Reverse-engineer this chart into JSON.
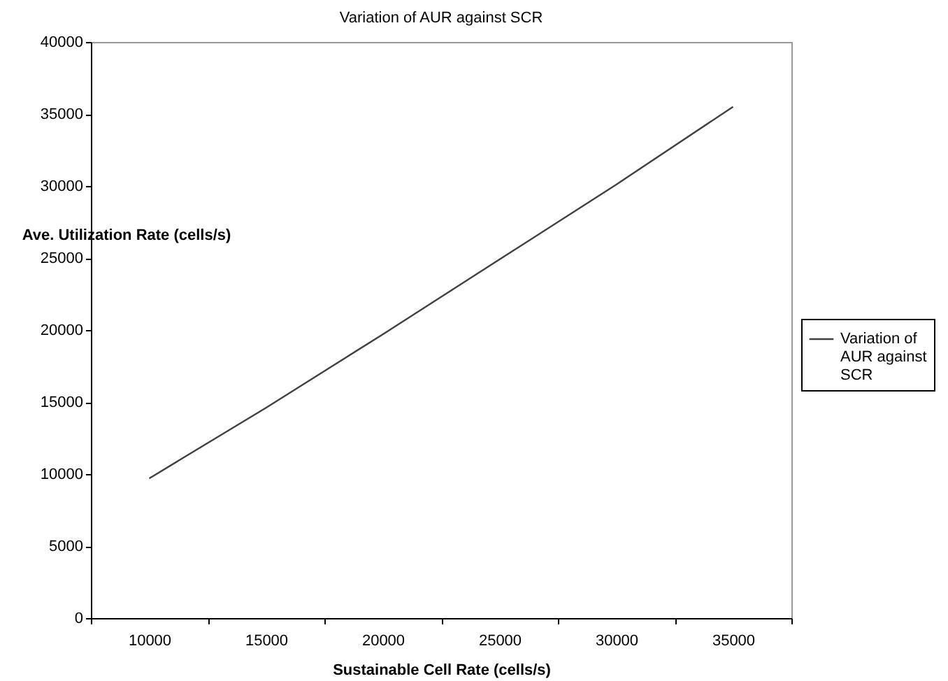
{
  "chart_data": {
    "type": "line",
    "title": "Variation of AUR against SCR",
    "xlabel": "Sustainable Cell Rate (cells/s)",
    "ylabel": "Ave. Utilization Rate (cells/s)",
    "categories": [
      "10000",
      "15000",
      "20000",
      "25000",
      "30000",
      "35000"
    ],
    "series": [
      {
        "name": "Variation of AUR against SCR",
        "color": "#404040",
        "values": [
          9700,
          14600,
          19700,
          24900,
          30100,
          35500
        ]
      }
    ],
    "ylim": [
      0,
      40000
    ],
    "yticks": [
      0,
      5000,
      10000,
      15000,
      20000,
      25000,
      30000,
      35000,
      40000
    ],
    "grid": false,
    "legend": "right",
    "marker": "none",
    "line_style": "solid"
  }
}
